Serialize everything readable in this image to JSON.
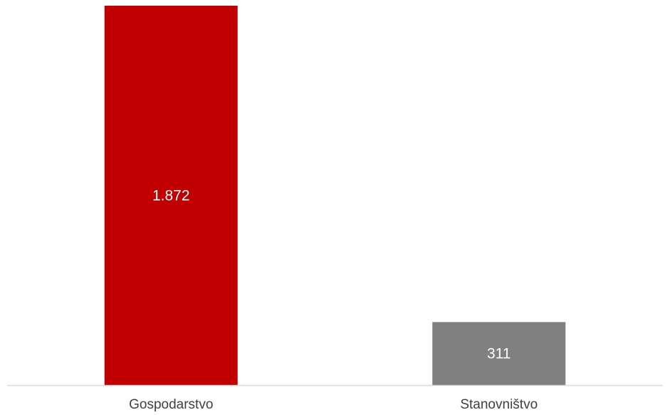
{
  "chart_data": {
    "type": "bar",
    "categories": [
      "Gospodarstvo",
      "Stanovništvo"
    ],
    "values": [
      1872,
      311
    ],
    "value_labels": [
      "1.872",
      "311"
    ],
    "colors": [
      "#c00000",
      "#808080"
    ],
    "title": "",
    "xlabel": "",
    "ylabel": "",
    "ylim": [
      0,
      1900
    ],
    "grid": false,
    "legend": "none"
  }
}
